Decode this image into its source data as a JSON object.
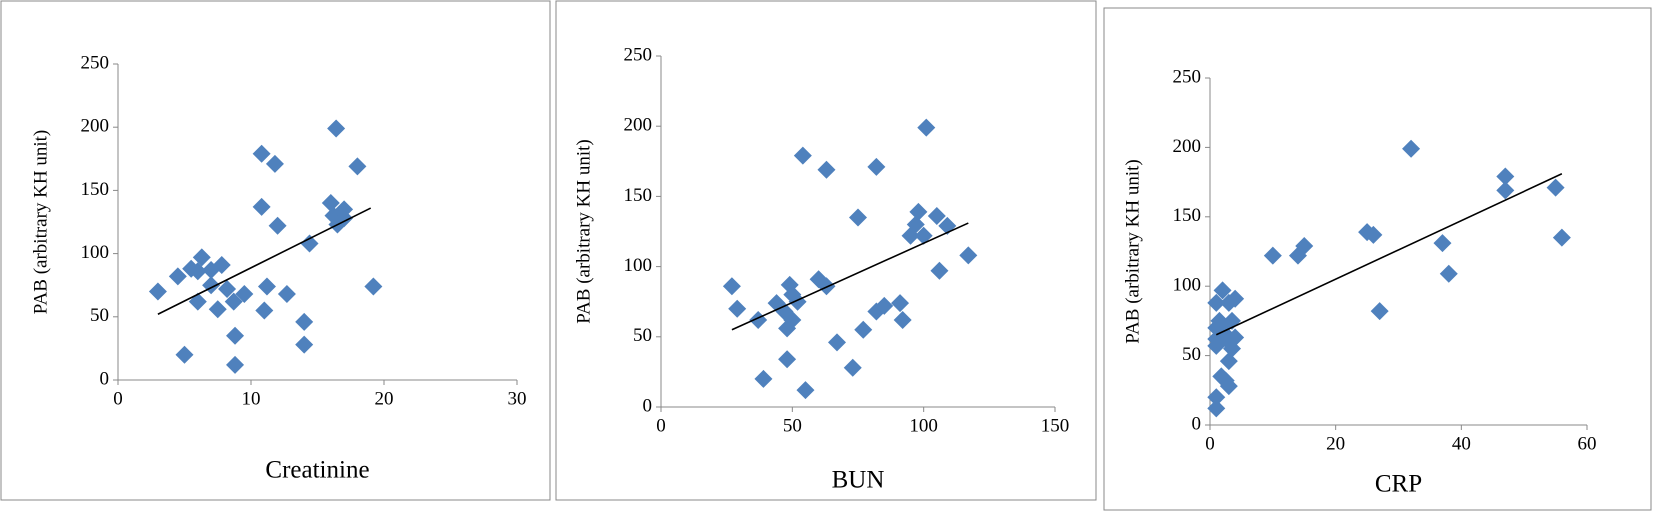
{
  "chart_data": [
    {
      "type": "scatter",
      "x_label": "Creatinine",
      "y_label": "PAB  (arbitrary KH  unit)",
      "color": "#4f81bd",
      "xlim": [
        0,
        30
      ],
      "xticks": [
        0,
        10,
        20,
        30
      ],
      "ylim": [
        0,
        250
      ],
      "yticks": [
        0,
        50,
        100,
        150,
        200,
        250
      ],
      "x": [
        3,
        4.5,
        5,
        5.5,
        6,
        6,
        6.3,
        7,
        7,
        7.5,
        7.8,
        8.2,
        8.7,
        8.8,
        8.8,
        9.5,
        10.8,
        10.8,
        11,
        11.2,
        11.8,
        12,
        12.7,
        14,
        14,
        14.4,
        16,
        16.2,
        16.4,
        16.5,
        17,
        17,
        18,
        19.2
      ],
      "values": [
        70,
        82,
        20,
        88,
        62,
        86,
        97,
        75,
        87,
        56,
        91,
        72,
        62,
        35,
        12,
        68,
        137,
        179,
        55,
        74,
        171,
        122,
        68,
        46,
        28,
        108,
        140,
        130,
        199,
        123,
        135,
        128,
        169,
        74
      ],
      "trendline": {
        "x": [
          3,
          19
        ],
        "y": [
          52,
          136
        ]
      }
    },
    {
      "type": "scatter",
      "x_label": "BUN",
      "y_label": "PAB  (arbitrary KH  unit)",
      "color": "#4f81bd",
      "xlim": [
        0,
        150
      ],
      "xticks": [
        0,
        50,
        100,
        150
      ],
      "ylim": [
        0,
        250
      ],
      "yticks": [
        0,
        50,
        100,
        150,
        200,
        250
      ],
      "x": [
        27,
        29,
        37,
        39,
        44,
        47,
        48,
        48,
        49,
        50,
        50,
        52,
        54,
        55,
        60,
        63,
        63,
        67,
        73,
        75,
        77,
        82,
        82,
        85,
        91,
        92,
        95,
        97,
        98,
        100,
        101,
        105,
        106,
        109,
        117
      ],
      "values": [
        86,
        70,
        62,
        20,
        74,
        68,
        34,
        56,
        87,
        80,
        62,
        75,
        179,
        12,
        91,
        169,
        86,
        46,
        28,
        135,
        55,
        68,
        171,
        72,
        74,
        62,
        122,
        130,
        139,
        122,
        199,
        136,
        97,
        129,
        108
      ],
      "trendline": {
        "x": [
          27,
          117
        ],
        "y": [
          55,
          131
        ]
      }
    },
    {
      "type": "scatter",
      "x_label": "CRP",
      "y_label": "PAB  (arbitrary KH  unit)",
      "color": "#4f81bd",
      "xlim": [
        0,
        60
      ],
      "xticks": [
        0,
        20,
        40,
        60
      ],
      "ylim": [
        0,
        250
      ],
      "yticks": [
        0,
        50,
        100,
        150,
        200,
        250
      ],
      "x": [
        1,
        1,
        1,
        1,
        1,
        1,
        1.5,
        1.8,
        2,
        2,
        2.5,
        2.5,
        3,
        3,
        3,
        3,
        3.5,
        3.5,
        4,
        4,
        10,
        14,
        15,
        25,
        26,
        27,
        32,
        37,
        38,
        47,
        47,
        55,
        56
      ],
      "values": [
        12,
        20,
        57,
        62,
        70,
        88,
        75,
        35,
        97,
        70,
        65,
        32,
        28,
        46,
        60,
        88,
        55,
        75,
        91,
        63,
        122,
        122,
        129,
        139,
        137,
        82,
        199,
        131,
        109,
        179,
        169,
        171,
        135
      ],
      "trendline": {
        "x": [
          1,
          56
        ],
        "y": [
          65,
          181
        ]
      }
    }
  ]
}
